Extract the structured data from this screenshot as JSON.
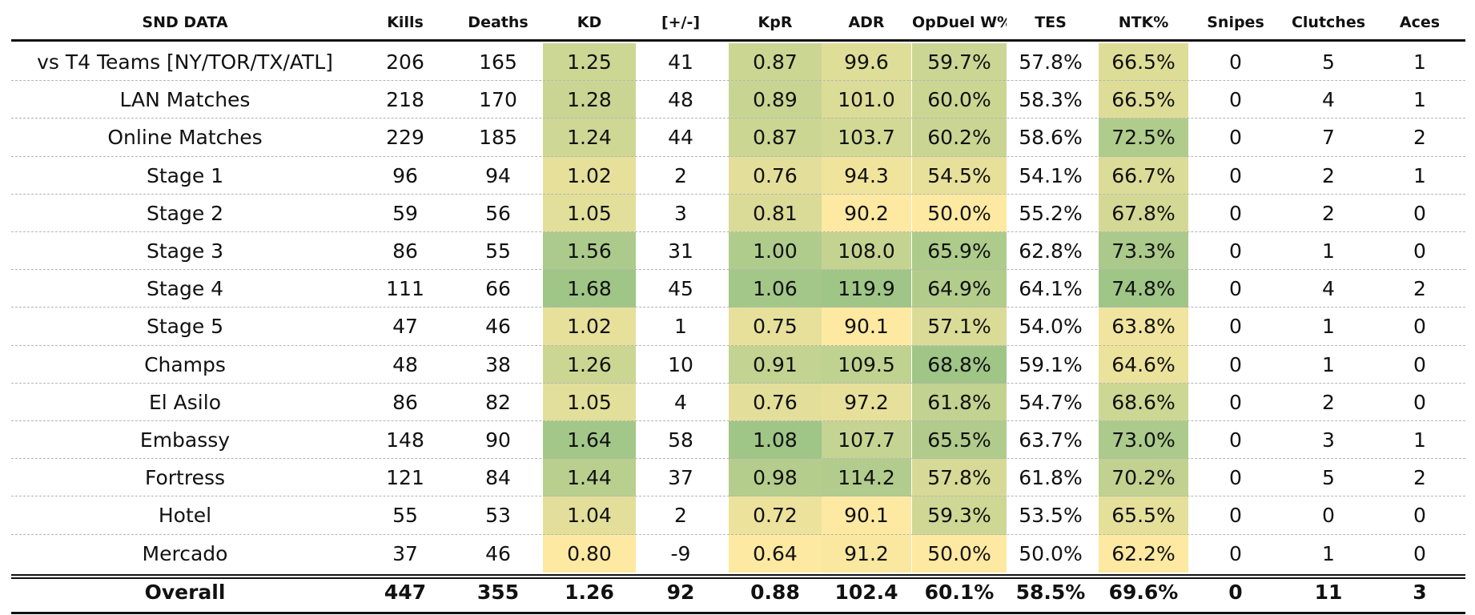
{
  "chart_data": {
    "type": "table",
    "title": "SND DATA",
    "columns": [
      "Kills",
      "Deaths",
      "KD",
      "[+/-]",
      "KpR",
      "ADR",
      "OpDuel W%",
      "TES",
      "NTK%",
      "Snipes",
      "Clutches",
      "Aces"
    ],
    "header_display": [
      "SND DATA",
      "Kills",
      "Deaths",
      "KD",
      "[+/-]",
      "KpR",
      "ADR",
      "OpDuel W%",
      "TES",
      "NTK%",
      "Snipes",
      "Clutches",
      "Aces"
    ],
    "heat_columns": [
      "KD",
      "KpR",
      "ADR",
      "OpDuel W%",
      "NTK%"
    ],
    "heat_colors": {
      "low": "#fde9a1",
      "high": "#9fc587"
    },
    "rows": [
      {
        "label": "vs T4 Teams [NY/TOR/TX/ATL]",
        "values": [
          "206",
          "165",
          "1.25",
          "41",
          "0.87",
          "99.6",
          "59.7%",
          "57.8%",
          "66.5%",
          "0",
          "5",
          "1"
        ]
      },
      {
        "label": "LAN Matches",
        "values": [
          "218",
          "170",
          "1.28",
          "48",
          "0.89",
          "101.0",
          "60.0%",
          "58.3%",
          "66.5%",
          "0",
          "4",
          "1"
        ]
      },
      {
        "label": "Online Matches",
        "values": [
          "229",
          "185",
          "1.24",
          "44",
          "0.87",
          "103.7",
          "60.2%",
          "58.6%",
          "72.5%",
          "0",
          "7",
          "2"
        ]
      },
      {
        "label": "Stage 1",
        "values": [
          "96",
          "94",
          "1.02",
          "2",
          "0.76",
          "94.3",
          "54.5%",
          "54.1%",
          "66.7%",
          "0",
          "2",
          "1"
        ]
      },
      {
        "label": "Stage 2",
        "values": [
          "59",
          "56",
          "1.05",
          "3",
          "0.81",
          "90.2",
          "50.0%",
          "55.2%",
          "67.8%",
          "0",
          "2",
          "0"
        ]
      },
      {
        "label": "Stage 3",
        "values": [
          "86",
          "55",
          "1.56",
          "31",
          "1.00",
          "108.0",
          "65.9%",
          "62.8%",
          "73.3%",
          "0",
          "1",
          "0"
        ]
      },
      {
        "label": "Stage 4",
        "values": [
          "111",
          "66",
          "1.68",
          "45",
          "1.06",
          "119.9",
          "64.9%",
          "64.1%",
          "74.8%",
          "0",
          "4",
          "2"
        ]
      },
      {
        "label": "Stage 5",
        "values": [
          "47",
          "46",
          "1.02",
          "1",
          "0.75",
          "90.1",
          "57.1%",
          "54.0%",
          "63.8%",
          "0",
          "1",
          "0"
        ]
      },
      {
        "label": "Champs",
        "values": [
          "48",
          "38",
          "1.26",
          "10",
          "0.91",
          "109.5",
          "68.8%",
          "59.1%",
          "64.6%",
          "0",
          "1",
          "0"
        ]
      },
      {
        "label": "El Asilo",
        "values": [
          "86",
          "82",
          "1.05",
          "4",
          "0.76",
          "97.2",
          "61.8%",
          "54.7%",
          "68.6%",
          "0",
          "2",
          "0"
        ]
      },
      {
        "label": "Embassy",
        "values": [
          "148",
          "90",
          "1.64",
          "58",
          "1.08",
          "107.7",
          "65.5%",
          "63.7%",
          "73.0%",
          "0",
          "3",
          "1"
        ]
      },
      {
        "label": "Fortress",
        "values": [
          "121",
          "84",
          "1.44",
          "37",
          "0.98",
          "114.2",
          "57.8%",
          "61.8%",
          "70.2%",
          "0",
          "5",
          "2"
        ]
      },
      {
        "label": "Hotel",
        "values": [
          "55",
          "53",
          "1.04",
          "2",
          "0.72",
          "90.1",
          "59.3%",
          "53.5%",
          "65.5%",
          "0",
          "0",
          "0"
        ]
      },
      {
        "label": "Mercado",
        "values": [
          "37",
          "46",
          "0.80",
          "-9",
          "0.64",
          "91.2",
          "50.0%",
          "50.0%",
          "62.2%",
          "0",
          "1",
          "0"
        ]
      }
    ],
    "total": {
      "label": "Overall",
      "values": [
        "447",
        "355",
        "1.26",
        "92",
        "0.88",
        "102.4",
        "60.1%",
        "58.5%",
        "69.6%",
        "0",
        "11",
        "3"
      ]
    }
  }
}
